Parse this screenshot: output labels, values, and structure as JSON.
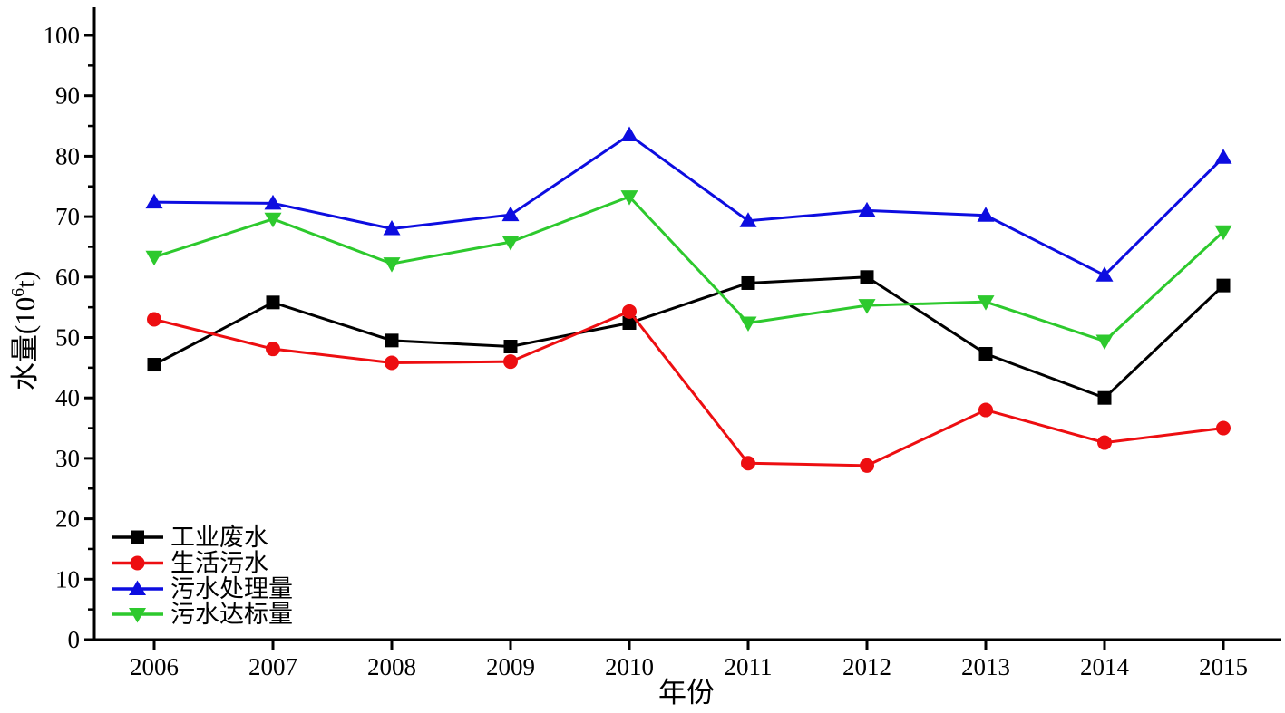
{
  "chart_data": {
    "type": "line",
    "title": "",
    "xlabel": "年份",
    "ylabel": "水量(10⁶t)",
    "ylabel_parts": {
      "prefix": "水量(10",
      "sup": "6",
      "suffix": "t)"
    },
    "x": [
      2006,
      2007,
      2008,
      2009,
      2010,
      2011,
      2012,
      2013,
      2014,
      2015
    ],
    "series": [
      {
        "name": "工业废水",
        "marker": "square",
        "color": "#000000",
        "values": [
          45.5,
          55.8,
          49.5,
          48.5,
          52.4,
          59.0,
          60.0,
          47.3,
          40.0,
          58.6
        ]
      },
      {
        "name": "生活污水",
        "marker": "circle",
        "color": "#ed0e11",
        "values": [
          53.0,
          48.1,
          45.8,
          46.0,
          54.3,
          29.2,
          28.8,
          38.0,
          32.6,
          35.0
        ]
      },
      {
        "name": "污水处理量",
        "marker": "triangle-up",
        "color": "#0d0de0",
        "values": [
          72.4,
          72.2,
          68.0,
          70.3,
          83.5,
          69.3,
          71.0,
          70.2,
          60.3,
          79.8
        ]
      },
      {
        "name": "污水达标量",
        "marker": "triangle-down",
        "color": "#2dc92d",
        "values": [
          63.3,
          69.6,
          62.2,
          65.8,
          73.3,
          52.4,
          55.3,
          55.9,
          49.4,
          67.5
        ]
      }
    ],
    "ylim": [
      0,
      104.6
    ],
    "ytick_major_step": 10,
    "ytick_minor_step": 5,
    "ytick_labels": [
      "0",
      "10",
      "20",
      "30",
      "40",
      "50",
      "60",
      "70",
      "80",
      "90",
      "100"
    ],
    "xtick_labels": [
      "2006",
      "2007",
      "2008",
      "2009",
      "2010",
      "2011",
      "2012",
      "2013",
      "2014",
      "2015"
    ],
    "legend_position": "lower-left",
    "grid": false,
    "axis_color": "#000000",
    "background_color": "#ffffff"
  }
}
